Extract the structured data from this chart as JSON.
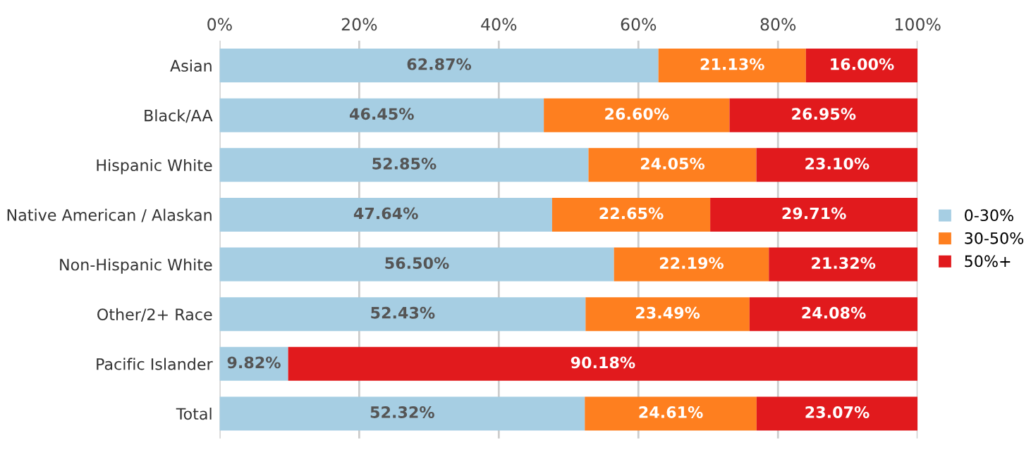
{
  "chart_data": {
    "type": "bar",
    "orientation": "horizontal",
    "stacked": true,
    "categories": [
      "Asian",
      "Black/AA",
      "Hispanic White",
      "Native American / Alaskan",
      "Non-Hispanic White",
      "Other/2+ Race",
      "Pacific Islander",
      "Total"
    ],
    "series": [
      {
        "name": "0-30%",
        "color": "#a6cee3",
        "values": [
          62.87,
          46.45,
          52.85,
          47.64,
          56.5,
          52.43,
          9.82,
          52.32
        ],
        "value_labels": [
          "62.87%",
          "46.45%",
          "52.85%",
          "47.64%",
          "56.50%",
          "52.43%",
          "9.82%",
          "52.32%"
        ]
      },
      {
        "name": "30-50%",
        "color": "#fe7f1f",
        "values": [
          21.13,
          26.6,
          24.05,
          22.65,
          22.19,
          23.49,
          null,
          24.61
        ],
        "value_labels": [
          "21.13%",
          "26.60%",
          "24.05%",
          "22.65%",
          "22.19%",
          "23.49%",
          null,
          "24.61%"
        ]
      },
      {
        "name": "50%+",
        "color": "#e11a1d",
        "values": [
          16.0,
          26.95,
          23.1,
          29.71,
          21.32,
          24.08,
          90.18,
          23.07
        ],
        "value_labels": [
          "16.00%",
          "26.95%",
          "23.10%",
          "29.71%",
          "21.32%",
          "24.08%",
          "90.18%",
          "23.07%"
        ]
      }
    ],
    "xlim": [
      0,
      100
    ],
    "xticks": [
      {
        "value": 0,
        "label": "0%"
      },
      {
        "value": 20,
        "label": "20%"
      },
      {
        "value": 40,
        "label": "40%"
      },
      {
        "value": 60,
        "label": "60%"
      },
      {
        "value": 80,
        "label": "80%"
      },
      {
        "value": 100,
        "label": "100%"
      }
    ],
    "grid": "x",
    "legend": "right"
  }
}
